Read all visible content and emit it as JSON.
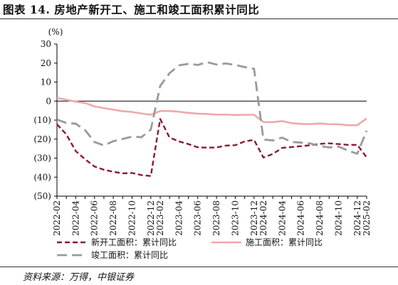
{
  "figure": {
    "title": "图表 14. 房地产新开工、施工和竣工面积累计同比",
    "source": "资料来源：万得，中银证券"
  },
  "chart_data": {
    "type": "line",
    "title": "",
    "ylabel": "(%)",
    "ylim": [
      -50,
      30
    ],
    "yticks": [
      30,
      20,
      10,
      0,
      -10,
      -20,
      -30,
      -40,
      -50
    ],
    "ytick_labels": [
      "30",
      "20",
      "10",
      "0",
      "(10)",
      "(20)",
      "(30)",
      "(40)",
      "(50)"
    ],
    "negative_label_color": "#c00000",
    "grid": false,
    "legend_position": "bottom",
    "x": [
      "2022-02",
      "2022-03",
      "2022-04",
      "2022-05",
      "2022-06",
      "2022-07",
      "2022-08",
      "2022-09",
      "2022-10",
      "2022-11",
      "2022-12",
      "2023-02",
      "2023-03",
      "2023-04",
      "2023-05",
      "2023-06",
      "2023-07",
      "2023-08",
      "2023-09",
      "2023-10",
      "2023-11",
      "2023-12",
      "2024-02",
      "2024-03",
      "2024-04",
      "2024-05",
      "2024-06",
      "2024-07",
      "2024-08",
      "2024-09",
      "2024-10",
      "2024-11",
      "2024-12",
      "2025-02"
    ],
    "xtick_labels": [
      "2022-02",
      "2022-04",
      "2022-06",
      "2022-08",
      "2022-10",
      "2022-12",
      "2023-02",
      "2023-04",
      "2023-06",
      "2023-08",
      "2023-10",
      "2023-12",
      "2024-02",
      "2024-04",
      "2024-06",
      "2024-08",
      "2024-10",
      "2024-12",
      "2025-02"
    ],
    "series": [
      {
        "name": "新开工面积：累计同比",
        "color": "#8b1a2e",
        "dash": "dash",
        "values": [
          -12.2,
          -17.5,
          -26.3,
          -30.6,
          -34.4,
          -36.1,
          -37.2,
          -38.0,
          -37.8,
          -38.9,
          -39.4,
          -9.4,
          -19.2,
          -21.2,
          -22.6,
          -24.3,
          -24.5,
          -24.4,
          -23.4,
          -23.2,
          -21.2,
          -20.4,
          -29.7,
          -27.8,
          -24.6,
          -24.2,
          -23.7,
          -23.2,
          -22.5,
          -22.2,
          -22.6,
          -23.0,
          -23.0,
          -29.6
        ]
      },
      {
        "name": "施工面积：累计同比",
        "color": "#f0a8a8",
        "dash": "solid",
        "values": [
          1.7,
          0.7,
          -0.3,
          -1.0,
          -2.8,
          -3.7,
          -4.5,
          -5.3,
          -5.7,
          -6.5,
          -7.2,
          -5.2,
          -5.2,
          -5.6,
          -6.2,
          -6.6,
          -6.8,
          -7.1,
          -7.1,
          -7.3,
          -7.2,
          -7.2,
          -11.0,
          -11.1,
          -10.5,
          -11.6,
          -12.0,
          -12.1,
          -11.8,
          -12.1,
          -12.2,
          -12.7,
          -12.7,
          -9.1
        ]
      },
      {
        "name": "竣工面积：累计同比",
        "color": "#9a9a9a",
        "dash": "longdash",
        "values": [
          -9.7,
          -11.5,
          -11.9,
          -15.3,
          -21.5,
          -23.3,
          -21.1,
          -19.9,
          -18.7,
          -19.0,
          -15.0,
          8.0,
          14.7,
          18.8,
          19.6,
          19.0,
          20.5,
          19.2,
          19.8,
          19.0,
          17.9,
          17.0,
          -20.2,
          -20.7,
          -19.2,
          -21.5,
          -21.8,
          -22.3,
          -23.6,
          -24.4,
          -23.9,
          -26.0,
          -27.7,
          -15.6
        ]
      }
    ]
  }
}
